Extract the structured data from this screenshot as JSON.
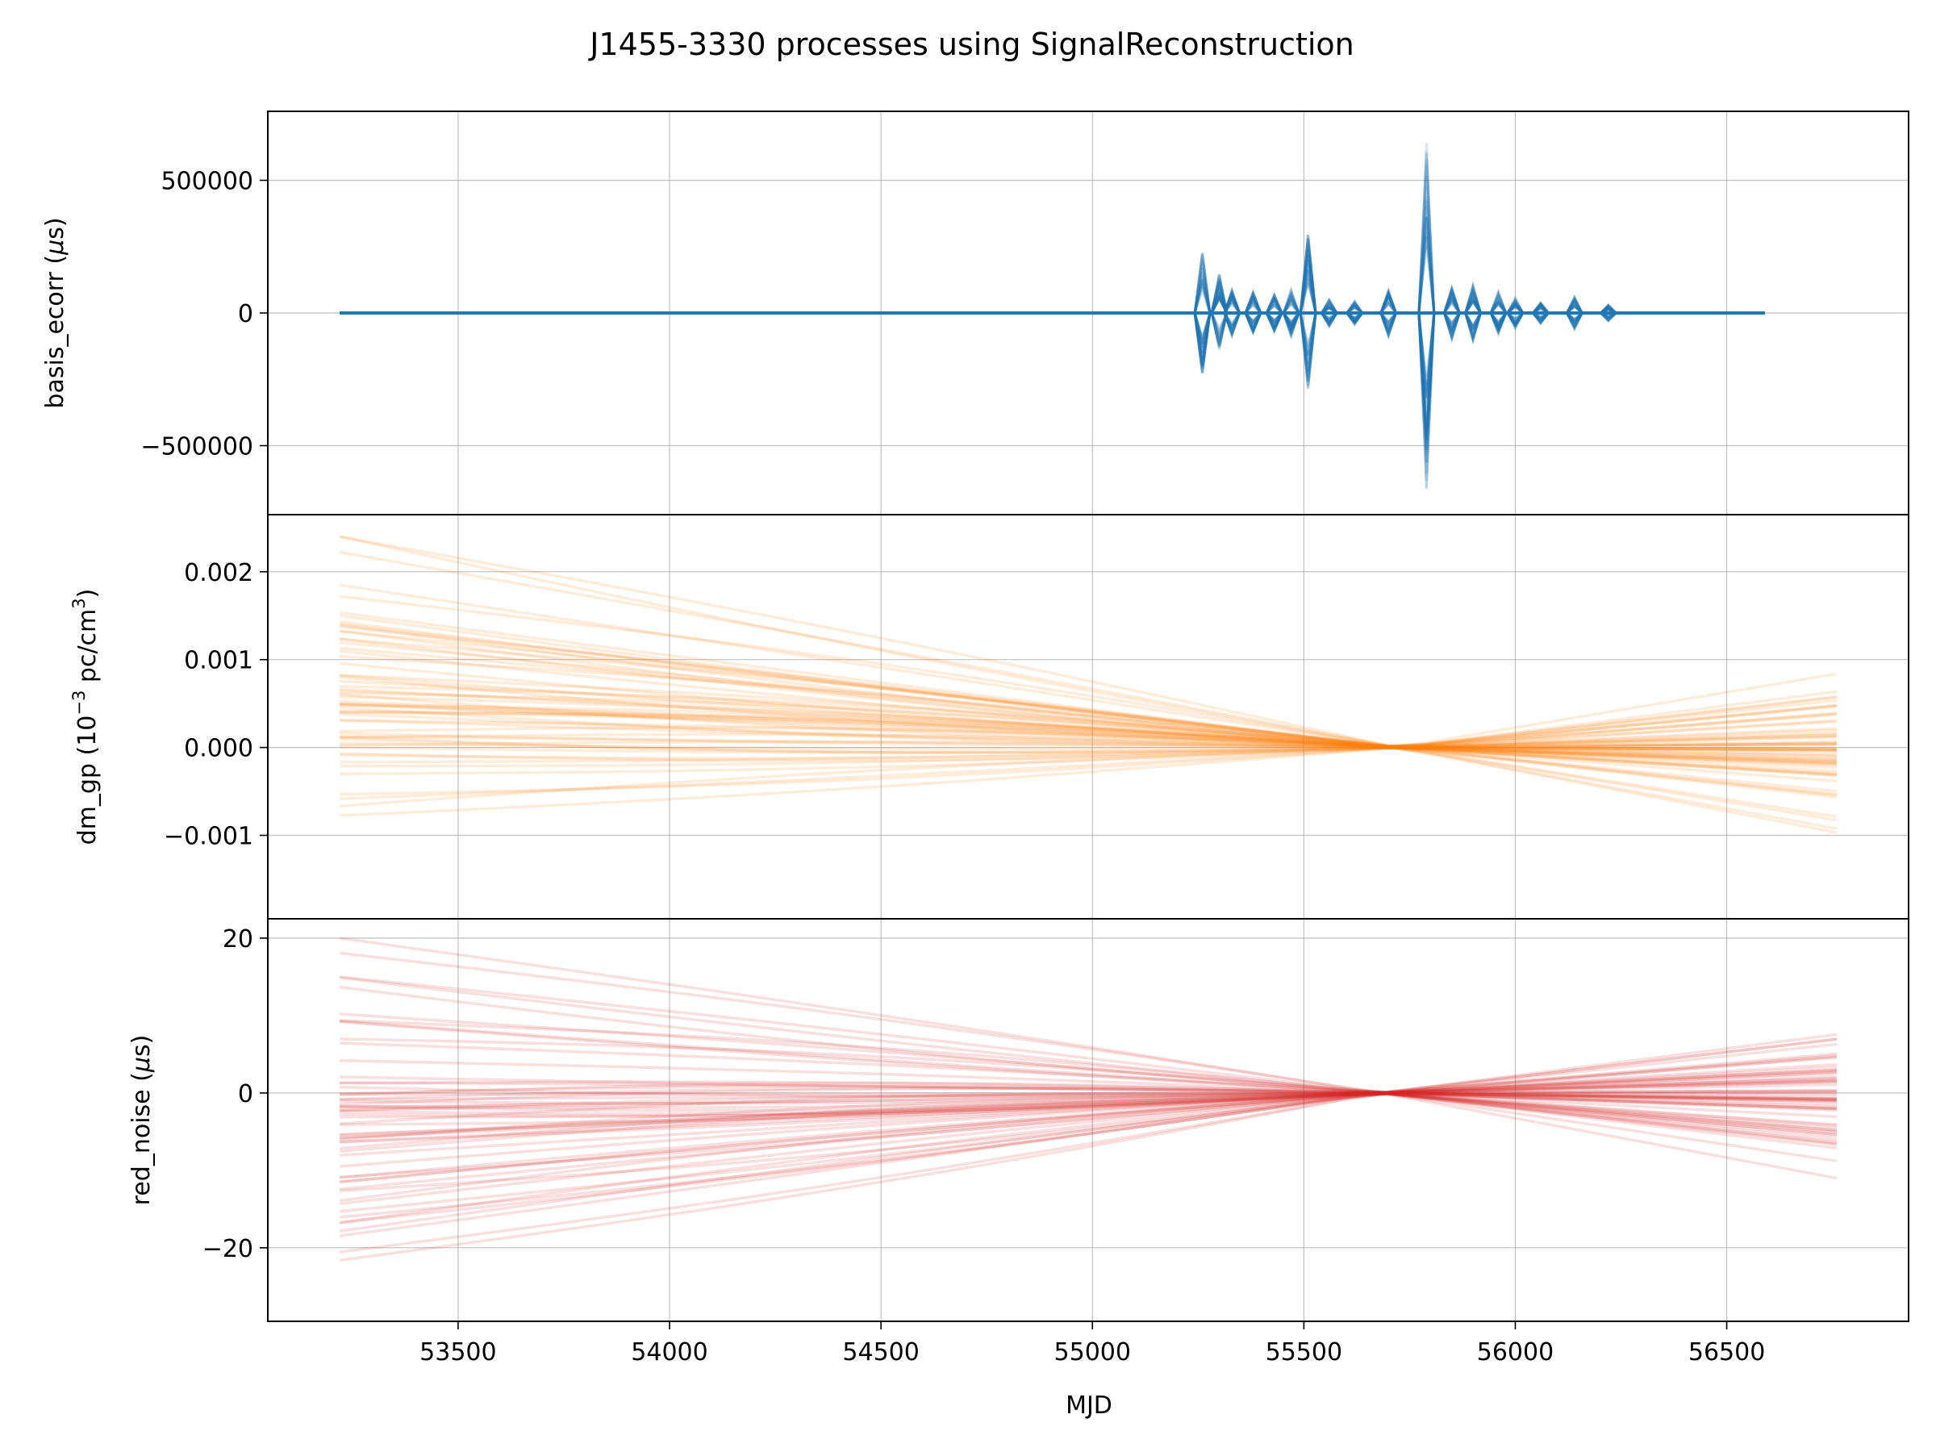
{
  "chart_data": {
    "type": "line",
    "title": "J1455-3330 processes using SignalReconstruction",
    "xlabel": "MJD",
    "xlim": [
      53050,
      56930
    ],
    "xticks": [
      53500,
      54000,
      54500,
      55000,
      55500,
      56000,
      56500
    ],
    "xtick_labels": [
      "53500",
      "54000",
      "54500",
      "55000",
      "55500",
      "56000",
      "56500"
    ],
    "grid": true,
    "legend": "none",
    "panels": [
      {
        "name": "basis_ecorr",
        "ylabel": "basis_ecorr (μs)",
        "ylabel_base": "basis_ecorr (",
        "ylabel_unit": "s)",
        "ylim": [
          -760000,
          760000
        ],
        "yticks": [
          -500000,
          0,
          500000
        ],
        "ytick_labels": [
          "−500000",
          "0",
          "500000"
        ],
        "color": "#1f77b4",
        "x_start": 53220,
        "x_end": 56590,
        "samples": 60,
        "spikes": [
          {
            "x": 55260,
            "amp": 230000
          },
          {
            "x": 55300,
            "amp": 150000
          },
          {
            "x": 55330,
            "amp": 90000
          },
          {
            "x": 55380,
            "amp": 80000
          },
          {
            "x": 55430,
            "amp": 70000
          },
          {
            "x": 55470,
            "amp": 90000
          },
          {
            "x": 55510,
            "amp": 300000
          },
          {
            "x": 55560,
            "amp": 50000
          },
          {
            "x": 55620,
            "amp": 45000
          },
          {
            "x": 55700,
            "amp": 90000
          },
          {
            "x": 55790,
            "amp": 680000
          },
          {
            "x": 55850,
            "amp": 100000
          },
          {
            "x": 55900,
            "amp": 110000
          },
          {
            "x": 55960,
            "amp": 80000
          },
          {
            "x": 56000,
            "amp": 60000
          },
          {
            "x": 56060,
            "amp": 40000
          },
          {
            "x": 56140,
            "amp": 60000
          },
          {
            "x": 56220,
            "amp": 30000
          }
        ]
      },
      {
        "name": "dm_gp",
        "ylabel": "dm_gp (10⁻³ pc/cm³)",
        "ylabel_base": "dm_gp (10",
        "ylabel_exp": "−3",
        "ylabel_mid": " pc/cm",
        "ylabel_exp2": "3",
        "ylabel_end": ")",
        "ylim": [
          -0.00195,
          0.00265
        ],
        "yticks": [
          -0.001,
          0.0,
          0.001,
          0.002
        ],
        "ytick_labels": [
          "−0.001",
          "0.000",
          "0.001",
          "0.002"
        ],
        "color": "#ff7f0e",
        "x_start": 53220,
        "x_end": 56760,
        "pinch_x": 55720,
        "samples": 60,
        "left_range": [
          -0.00175,
          0.0024
        ],
        "right_range": [
          -0.00105,
          0.00098
        ]
      },
      {
        "name": "red_noise",
        "ylabel": "red_noise (μs)",
        "ylabel_base": "red_noise (",
        "ylabel_unit": "s)",
        "ylim": [
          -29.5,
          22.5
        ],
        "yticks": [
          -20,
          0,
          20
        ],
        "ytick_labels": [
          "−20",
          "0",
          "20"
        ],
        "color": "#d62728",
        "x_start": 53220,
        "x_end": 56760,
        "pinch_x": 55680,
        "samples": 60,
        "left_range": [
          -27.5,
          20.0
        ],
        "right_range": [
          -11.0,
          9.5
        ]
      }
    ]
  }
}
